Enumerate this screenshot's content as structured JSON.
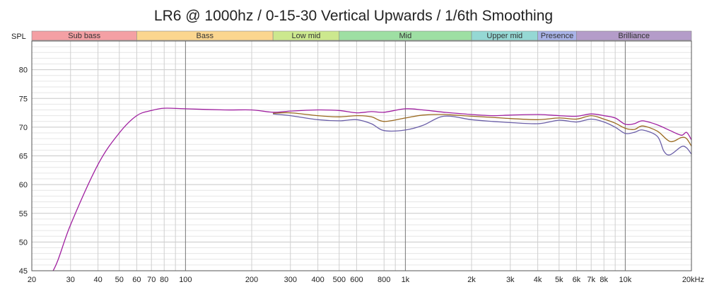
{
  "chart_data": {
    "type": "line",
    "title": "LR6 @ 1000hz / 0-15-30 Vertical Upwards / 1/6th Smoothing",
    "ylabel": "SPL",
    "xlabel": "",
    "x_scale": "log",
    "xlim": [
      20,
      20000
    ],
    "ylim": [
      45,
      85
    ],
    "y_ticks": [
      45,
      50,
      55,
      60,
      65,
      70,
      75,
      80
    ],
    "x_ticks": [
      {
        "value": 20,
        "label": "20"
      },
      {
        "value": 30,
        "label": "30"
      },
      {
        "value": 40,
        "label": "40"
      },
      {
        "value": 50,
        "label": "50"
      },
      {
        "value": 60,
        "label": "60"
      },
      {
        "value": 70,
        "label": "70"
      },
      {
        "value": 80,
        "label": "80"
      },
      {
        "value": 100,
        "label": "100"
      },
      {
        "value": 200,
        "label": "200"
      },
      {
        "value": 300,
        "label": "300"
      },
      {
        "value": 400,
        "label": "400"
      },
      {
        "value": 500,
        "label": "500"
      },
      {
        "value": 600,
        "label": "600"
      },
      {
        "value": 800,
        "label": "800"
      },
      {
        "value": 1000,
        "label": "1k"
      },
      {
        "value": 2000,
        "label": "2k"
      },
      {
        "value": 3000,
        "label": "3k"
      },
      {
        "value": 4000,
        "label": "4k"
      },
      {
        "value": 5000,
        "label": "5k"
      },
      {
        "value": 6000,
        "label": "6k"
      },
      {
        "value": 7000,
        "label": "7k"
      },
      {
        "value": 8000,
        "label": "8k"
      },
      {
        "value": 10000,
        "label": "10k"
      },
      {
        "value": 20000,
        "label": "20kHz"
      }
    ],
    "bands": [
      {
        "label": "Sub bass",
        "from": 20,
        "to": 60,
        "color": "#f4a0a4"
      },
      {
        "label": "Bass",
        "from": 60,
        "to": 250,
        "color": "#fbd68f"
      },
      {
        "label": "Low mid",
        "from": 250,
        "to": 500,
        "color": "#cce88e"
      },
      {
        "label": "Mid",
        "from": 500,
        "to": 2000,
        "color": "#9edfa3"
      },
      {
        "label": "Upper mid",
        "from": 2000,
        "to": 4000,
        "color": "#95d8d4"
      },
      {
        "label": "Presence",
        "from": 4000,
        "to": 6000,
        "color": "#a9b3e8"
      },
      {
        "label": "Brilliance",
        "from": 6000,
        "to": 20000,
        "color": "#b49cc9"
      }
    ],
    "grid": true,
    "series": [
      {
        "color": "#a020a0",
        "points": [
          [
            20,
            41
          ],
          [
            25,
            45
          ],
          [
            30,
            53
          ],
          [
            40,
            63.5
          ],
          [
            50,
            69
          ],
          [
            60,
            72
          ],
          [
            70,
            72.9
          ],
          [
            80,
            73.3
          ],
          [
            100,
            73.2
          ],
          [
            150,
            73.0
          ],
          [
            200,
            73.0
          ],
          [
            250,
            72.6
          ],
          [
            300,
            72.8
          ],
          [
            400,
            73.0
          ],
          [
            500,
            72.9
          ],
          [
            600,
            72.5
          ],
          [
            700,
            72.7
          ],
          [
            800,
            72.6
          ],
          [
            1000,
            73.2
          ],
          [
            1200,
            73.0
          ],
          [
            1500,
            72.6
          ],
          [
            2000,
            72.2
          ],
          [
            2500,
            72.0
          ],
          [
            3000,
            72.1
          ],
          [
            4000,
            72.2
          ],
          [
            5000,
            72.0
          ],
          [
            6000,
            71.9
          ],
          [
            7000,
            72.3
          ],
          [
            8000,
            72.0
          ],
          [
            9000,
            71.6
          ],
          [
            10000,
            70.5
          ],
          [
            11000,
            70.6
          ],
          [
            12000,
            71.1
          ],
          [
            14000,
            70.4
          ],
          [
            16000,
            69.4
          ],
          [
            18000,
            68.6
          ],
          [
            19000,
            69.1
          ],
          [
            20000,
            67.8
          ]
        ]
      },
      {
        "color": "#9a6a20",
        "points": [
          [
            250,
            72.4
          ],
          [
            300,
            72.5
          ],
          [
            400,
            72.0
          ],
          [
            500,
            71.8
          ],
          [
            600,
            72.0
          ],
          [
            700,
            71.8
          ],
          [
            800,
            71.0
          ],
          [
            1000,
            71.6
          ],
          [
            1200,
            72.1
          ],
          [
            1500,
            72.2
          ],
          [
            2000,
            71.9
          ],
          [
            2500,
            71.7
          ],
          [
            3000,
            71.5
          ],
          [
            4000,
            71.3
          ],
          [
            5000,
            71.6
          ],
          [
            6000,
            71.4
          ],
          [
            7000,
            72.0
          ],
          [
            8000,
            71.4
          ],
          [
            9000,
            70.7
          ],
          [
            10000,
            69.8
          ],
          [
            11000,
            69.6
          ],
          [
            12000,
            70.2
          ],
          [
            14000,
            69.3
          ],
          [
            16000,
            67.5
          ],
          [
            18000,
            68.2
          ],
          [
            19000,
            68.0
          ],
          [
            20000,
            66.7
          ]
        ]
      },
      {
        "color": "#6b5fa8",
        "points": [
          [
            250,
            72.3
          ],
          [
            300,
            72.0
          ],
          [
            400,
            71.3
          ],
          [
            500,
            71.1
          ],
          [
            600,
            71.3
          ],
          [
            700,
            70.6
          ],
          [
            800,
            69.4
          ],
          [
            1000,
            69.5
          ],
          [
            1200,
            70.3
          ],
          [
            1500,
            71.9
          ],
          [
            2000,
            71.3
          ],
          [
            2500,
            71.0
          ],
          [
            3000,
            70.8
          ],
          [
            4000,
            70.6
          ],
          [
            5000,
            71.2
          ],
          [
            6000,
            70.9
          ],
          [
            7000,
            71.4
          ],
          [
            8000,
            70.9
          ],
          [
            9000,
            70.0
          ],
          [
            10000,
            68.9
          ],
          [
            11000,
            69.1
          ],
          [
            12000,
            69.5
          ],
          [
            14000,
            68.4
          ],
          [
            15000,
            65.8
          ],
          [
            16000,
            65.2
          ],
          [
            18000,
            66.6
          ],
          [
            19000,
            66.4
          ],
          [
            20000,
            65.3
          ]
        ]
      }
    ]
  }
}
